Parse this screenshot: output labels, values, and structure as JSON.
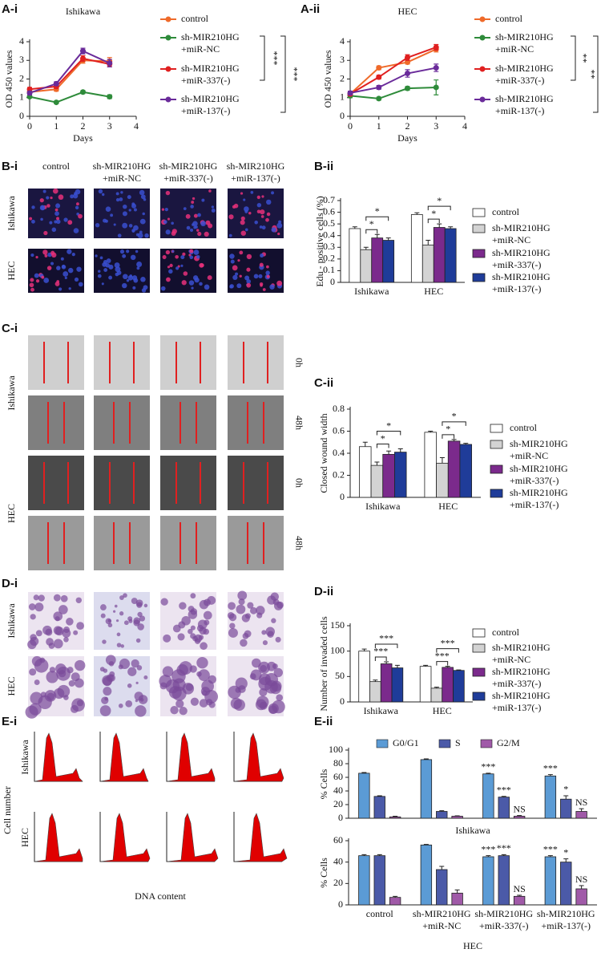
{
  "panel_labels": [
    "A-i",
    "A-ii",
    "B-i",
    "B-ii",
    "C-i",
    "C-ii",
    "D-i",
    "D-ii",
    "E-i",
    "E-ii"
  ],
  "images": {
    "b": {
      "columns": [
        "control",
        "sh-MIR210HG\n+miR-NC",
        "sh-MIR210HG\n+miR-337(-)",
        "sh-MIR210HG\n+miR-137(-)"
      ],
      "rows": [
        "Ishikawa",
        "HEC"
      ]
    },
    "c": {
      "rows": [
        "Ishikawa",
        "HEC"
      ],
      "times": [
        "0h",
        "48h",
        "0h",
        "48h"
      ]
    },
    "d": {
      "rows": [
        "Ishikawa",
        "HEC"
      ]
    },
    "e": {
      "rows": [
        "Ishikawa",
        "HEC"
      ],
      "ylabel": "Cell number",
      "xlabel": "DNA content"
    }
  },
  "chart_data": [
    {
      "type": "line",
      "title": "Ishikawa",
      "xlabel": "Days",
      "ylabel": "OD 450 values",
      "x": [
        0,
        1,
        2,
        3
      ],
      "xlim": [
        0,
        4
      ],
      "xticks": [
        0,
        1,
        2,
        3,
        4
      ],
      "ylim": [
        0,
        4
      ],
      "yticks": [
        0,
        1,
        2,
        3,
        4
      ],
      "legend": "right",
      "series": [
        {
          "name": "control",
          "color": "#ef6a2a",
          "values": [
            1.3,
            1.45,
            3.0,
            2.95
          ],
          "errors": [
            0.1,
            0.1,
            0.15,
            0.2
          ]
        },
        {
          "name": "sh-MIR210HG\n+miR-NC",
          "color": "#2e8b3a",
          "values": [
            1.05,
            0.75,
            1.3,
            1.05
          ],
          "errors": [
            0.05,
            0.05,
            0.08,
            0.1
          ]
        },
        {
          "name": "sh-MIR210HG\n+miR-337(-)",
          "color": "#e02020",
          "values": [
            1.45,
            1.6,
            3.1,
            2.8
          ],
          "errors": [
            0.1,
            0.1,
            0.15,
            0.15
          ]
        },
        {
          "name": "sh-MIR210HG\n+miR-137(-)",
          "color": "#6a2b9a",
          "values": [
            1.25,
            1.75,
            3.5,
            2.85
          ],
          "errors": [
            0.1,
            0.1,
            0.15,
            0.2
          ]
        }
      ],
      "annotations": [
        "***",
        "***"
      ]
    },
    {
      "type": "line",
      "title": "HEC",
      "xlabel": "Days",
      "ylabel": "OD 450 values",
      "x": [
        0,
        1,
        2,
        3
      ],
      "xlim": [
        0,
        4
      ],
      "xticks": [
        0,
        1,
        2,
        3,
        4
      ],
      "ylim": [
        0,
        4
      ],
      "yticks": [
        0,
        1,
        2,
        3,
        4
      ],
      "legend": "right",
      "series": [
        {
          "name": "control",
          "color": "#ef6a2a",
          "values": [
            1.2,
            2.6,
            2.9,
            3.6
          ],
          "errors": [
            0.1,
            0.1,
            0.1,
            0.15
          ]
        },
        {
          "name": "sh-MIR210HG\n+miR-NC",
          "color": "#2e8b3a",
          "values": [
            1.1,
            0.95,
            1.5,
            1.55
          ],
          "errors": [
            0.1,
            0.08,
            0.1,
            0.4
          ]
        },
        {
          "name": "sh-MIR210HG\n+miR-337(-)",
          "color": "#e02020",
          "values": [
            1.2,
            2.1,
            3.15,
            3.7
          ],
          "errors": [
            0.1,
            0.1,
            0.15,
            0.15
          ]
        },
        {
          "name": "sh-MIR210HG\n+miR-137(-)",
          "color": "#6a2b9a",
          "values": [
            1.25,
            1.55,
            2.3,
            2.6
          ],
          "errors": [
            0.1,
            0.1,
            0.2,
            0.2
          ]
        }
      ],
      "annotations": [
        "**",
        "**"
      ]
    },
    {
      "type": "bar",
      "ylabel": "Edu - positive cells (%)",
      "categories": [
        "Ishikawa",
        "HEC"
      ],
      "ylim": [
        0,
        0.7
      ],
      "yticks": [
        0,
        0.1,
        0.2,
        0.3,
        0.4,
        0.5,
        0.6,
        0.7
      ],
      "legend": "right",
      "series": [
        {
          "name": "control",
          "color": "#ffffff",
          "values": [
            0.46,
            0.58
          ],
          "errors": [
            0.015,
            0.015
          ]
        },
        {
          "name": "sh-MIR210HG\n+miR-NC",
          "color": "#d3d3d3",
          "values": [
            0.28,
            0.32
          ],
          "errors": [
            0.02,
            0.04
          ]
        },
        {
          "name": "sh-MIR210HG\n+miR-337(-)",
          "color": "#7b2a8c",
          "values": [
            0.38,
            0.47
          ],
          "errors": [
            0.03,
            0.03
          ]
        },
        {
          "name": "sh-MIR210HG\n+miR-137(-)",
          "color": "#1f3c99",
          "values": [
            0.36,
            0.46
          ],
          "errors": [
            0.02,
            0.015
          ]
        }
      ],
      "annotations": [
        "*",
        "*",
        "*",
        "*"
      ]
    },
    {
      "type": "bar",
      "ylabel": "Closed wound width",
      "categories": [
        "Ishikawa",
        "HEC"
      ],
      "ylim": [
        0,
        0.8
      ],
      "yticks": [
        0,
        0.2,
        0.4,
        0.6,
        0.8
      ],
      "legend": "right",
      "series": [
        {
          "name": "control",
          "color": "#ffffff",
          "values": [
            0.46,
            0.59
          ],
          "errors": [
            0.04,
            0.01
          ]
        },
        {
          "name": "sh-MIR210HG\n+miR-NC",
          "color": "#d3d3d3",
          "values": [
            0.29,
            0.31
          ],
          "errors": [
            0.03,
            0.05
          ]
        },
        {
          "name": "sh-MIR210HG\n+miR-337(-)",
          "color": "#7b2a8c",
          "values": [
            0.39,
            0.51
          ],
          "errors": [
            0.03,
            0.015
          ]
        },
        {
          "name": "sh-MIR210HG\n+miR-137(-)",
          "color": "#1f3c99",
          "values": [
            0.41,
            0.48
          ],
          "errors": [
            0.03,
            0.01
          ]
        }
      ],
      "annotations": [
        "*",
        "*",
        "*",
        "*"
      ]
    },
    {
      "type": "bar",
      "ylabel": "Number of invaded cells",
      "categories": [
        "Ishikawa",
        "HEC"
      ],
      "ylim": [
        0,
        150
      ],
      "yticks": [
        0,
        50,
        100,
        150
      ],
      "legend": "right",
      "series": [
        {
          "name": "control",
          "color": "#ffffff",
          "values": [
            100,
            70
          ],
          "errors": [
            4,
            2
          ]
        },
        {
          "name": "sh-MIR210HG\n+miR-NC",
          "color": "#d3d3d3",
          "values": [
            40,
            27
          ],
          "errors": [
            3,
            2
          ]
        },
        {
          "name": "sh-MIR210HG\n+miR-337(-)",
          "color": "#7b2a8c",
          "values": [
            75,
            68
          ],
          "errors": [
            4,
            2
          ]
        },
        {
          "name": "sh-MIR210HG\n+miR-137(-)",
          "color": "#1f3c99",
          "values": [
            67,
            62
          ],
          "errors": [
            5,
            1
          ]
        }
      ],
      "annotations": [
        "***",
        "***",
        "***",
        "***"
      ]
    },
    {
      "type": "bar",
      "ylabel": "% Cells",
      "xlabel": "Ishikawa",
      "categories": [
        null,
        null,
        null,
        null
      ],
      "ylim": [
        0,
        100
      ],
      "yticks": [
        0,
        20,
        40,
        60,
        80,
        100
      ],
      "legend": "top",
      "series": [
        {
          "name": "G0/G1",
          "color": "#5b9bd5",
          "values": [
            66,
            86,
            65,
            62
          ],
          "errors": [
            1,
            1,
            1,
            2
          ]
        },
        {
          "name": "S",
          "color": "#4b5aa8",
          "values": [
            32,
            10,
            31,
            28
          ],
          "errors": [
            1,
            1,
            1,
            5
          ]
        },
        {
          "name": "G2/M",
          "color": "#a05aa8",
          "values": [
            2,
            3,
            3,
            10
          ],
          "errors": [
            1,
            0.5,
            1,
            4
          ]
        }
      ],
      "annotations": [
        "***",
        "***",
        "NS",
        "***",
        "*",
        "NS"
      ]
    },
    {
      "type": "bar",
      "ylabel": "% Cells",
      "xlabel": "HEC",
      "categories": [
        "control",
        "sh-MIR210HG\n+miR-NC",
        "sh-MIR210HG\n+miR-337(-)",
        "sh-MIR210HG\n+miR-137(-)"
      ],
      "ylim": [
        0,
        60
      ],
      "yticks": [
        0,
        20,
        40,
        60
      ],
      "legend": false,
      "series": [
        {
          "name": "G0/G1",
          "color": "#5b9bd5",
          "values": [
            46,
            56,
            45,
            45
          ],
          "errors": [
            1,
            0.5,
            1,
            1
          ]
        },
        {
          "name": "S",
          "color": "#4b5aa8",
          "values": [
            46,
            33,
            46,
            40
          ],
          "errors": [
            1,
            3,
            1,
            3
          ]
        },
        {
          "name": "G2/M",
          "color": "#a05aa8",
          "values": [
            7,
            11,
            8,
            15
          ],
          "errors": [
            1,
            3,
            1,
            3
          ]
        }
      ],
      "annotations": [
        "***",
        "***",
        "NS",
        "***",
        "*",
        "NS"
      ]
    }
  ]
}
